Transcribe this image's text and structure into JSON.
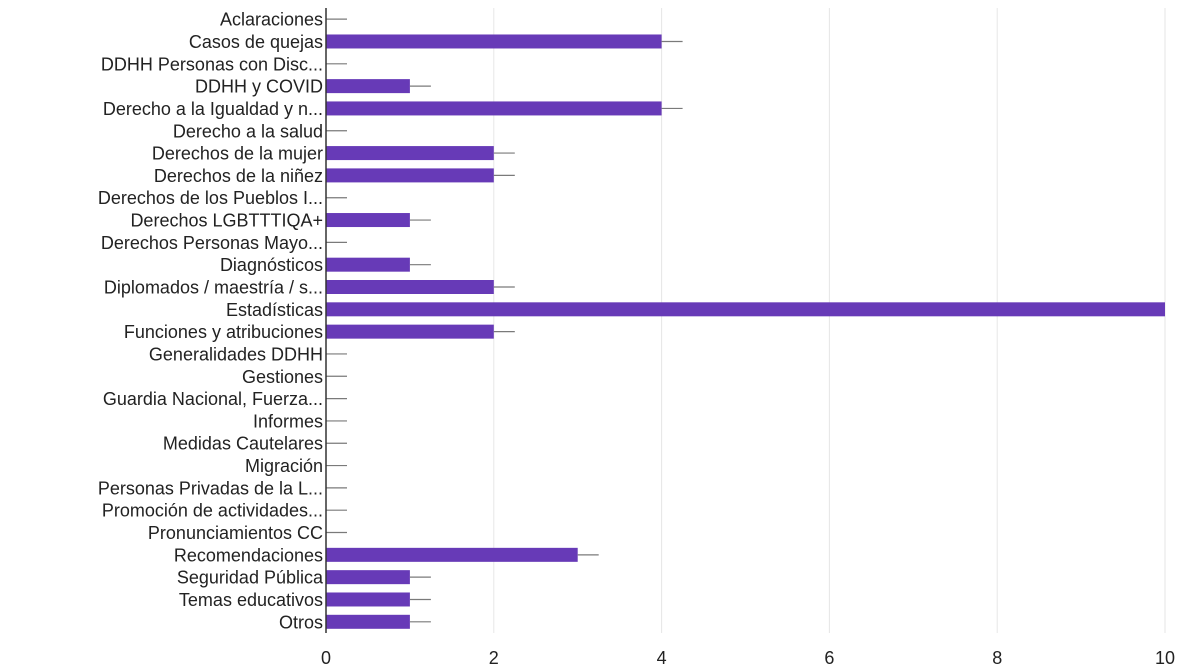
{
  "chart_data": {
    "type": "bar",
    "orientation": "horizontal",
    "categories": [
      "Aclaraciones",
      "Casos de quejas",
      "DDHH Personas con Disc...",
      "DDHH y COVID",
      "Derecho a la Igualdad y n...",
      "Derecho a la salud",
      "Derechos de la mujer",
      "Derechos de la niñez",
      "Derechos de los Pueblos I...",
      "Derechos LGBTTTIQA+",
      "Derechos Personas Mayo...",
      "Diagnósticos",
      "Diplomados / maestría / s...",
      "Estadísticas",
      "Funciones y atribuciones",
      "Generalidades DDHH",
      "Gestiones",
      "Guardia Nacional, Fuerza...",
      "Informes",
      "Medidas Cautelares",
      "Migración",
      "Personas Privadas de la L...",
      "Promoción de actividades...",
      "Pronunciamientos CC",
      "Recomendaciones",
      "Seguridad Pública",
      "Temas educativos",
      "Otros"
    ],
    "values": [
      0,
      4,
      0,
      1,
      4,
      0,
      2,
      2,
      0,
      1,
      0,
      1,
      2,
      10,
      2,
      0,
      0,
      0,
      0,
      0,
      0,
      0,
      0,
      0,
      3,
      1,
      1,
      1
    ],
    "title": "",
    "xlabel": "",
    "ylabel": "",
    "xlim": [
      0,
      10
    ],
    "x_ticks": [
      "0",
      "2",
      "4",
      "6",
      "8",
      "10"
    ],
    "grid": true,
    "bar_color": "#673ab7",
    "error_whisker_color": "#7a7a7a",
    "grid_color": "#e6e6e6"
  }
}
